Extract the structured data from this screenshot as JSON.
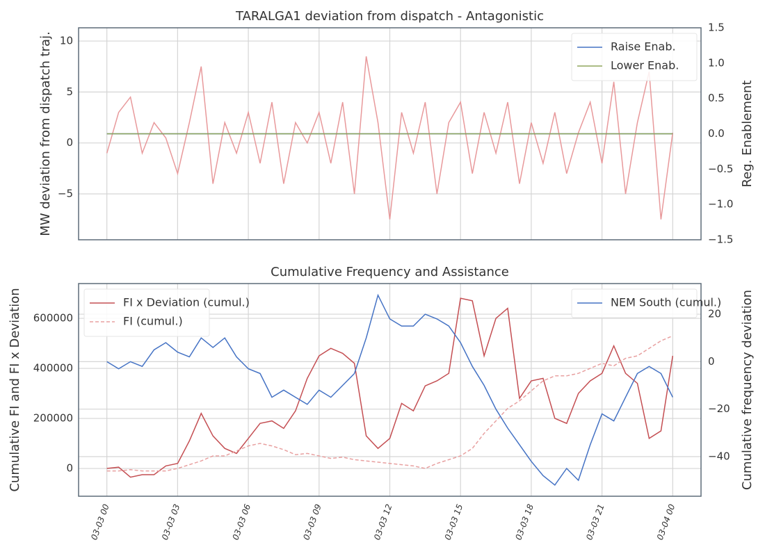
{
  "chart_data": [
    {
      "type": "line",
      "title": "TARALGA1 deviation from dispatch - Antagonistic",
      "ylabel": "MW deviation from dispatch traj.",
      "y2label": "Reg. Enablement",
      "x": [
        0,
        0.5,
        1,
        1.5,
        2,
        2.5,
        3,
        3.5,
        4,
        4.5,
        5,
        5.5,
        6,
        6.5,
        7,
        7.5,
        8,
        8.5,
        9,
        9.5,
        10,
        10.5,
        11,
        11.5,
        12,
        12.5,
        13,
        13.5,
        14,
        14.5,
        15,
        15.5,
        16,
        16.5,
        17,
        17.5,
        18,
        18.5,
        19,
        19.5,
        20,
        20.5,
        21,
        21.5,
        22,
        22.5,
        23,
        23.5,
        24
      ],
      "xlim": [
        -1.2,
        25.2
      ],
      "xticks": [
        0,
        3,
        6,
        9,
        12,
        15,
        18,
        21,
        24
      ],
      "ylim": [
        -9.5,
        11.3
      ],
      "yticks": [
        {
          "value": -5,
          "label": "−5"
        },
        0,
        5,
        10
      ],
      "y2lim": [
        -1.5,
        1.5
      ],
      "y2ticks": [
        {
          "value": -1.5,
          "label": "−1.5"
        },
        {
          "value": -1,
          "label": "−1.0"
        },
        {
          "value": -0.5,
          "label": "−0.5"
        },
        {
          "value": 0,
          "label": "0.0"
        },
        0.5,
        {
          "value": 1,
          "label": "1.0"
        },
        1.5
      ],
      "grid": true,
      "y2grid": false,
      "legend": {
        "y2": "upper right"
      },
      "series": [
        {
          "color": "#e8999b",
          "values": [
            -1,
            3,
            4.5,
            -1,
            2,
            0.5,
            -3,
            2,
            7.5,
            -4,
            2,
            -1,
            3,
            -2,
            4,
            -4,
            2,
            0,
            3,
            -2,
            4,
            -5,
            8.5,
            2,
            -7.5,
            3,
            -1,
            4,
            -5,
            2,
            4,
            -3,
            3,
            -1,
            4,
            -4,
            2,
            -2,
            3,
            -3,
            1,
            4,
            -2,
            6,
            -5,
            2,
            7,
            -7.5,
            1
          ]
        },
        {
          "name": "Raise Enab.",
          "color": "#4472c4",
          "axis": "y2",
          "values": [
            0,
            0,
            0,
            0,
            0,
            0,
            0,
            0,
            0,
            0,
            0,
            0,
            0,
            0,
            0,
            0,
            0,
            0,
            0,
            0,
            0,
            0,
            0,
            0,
            0,
            0,
            0,
            0,
            0,
            0,
            0,
            0,
            0,
            0,
            0,
            0,
            0,
            0,
            0,
            0,
            0,
            0,
            0,
            0,
            0,
            0,
            0,
            0,
            0
          ]
        },
        {
          "name": "Lower Enab.",
          "color": "#8fa65b",
          "axis": "y2",
          "values": [
            0,
            0,
            0,
            0,
            0,
            0,
            0,
            0,
            0,
            0,
            0,
            0,
            0,
            0,
            0,
            0,
            0,
            0,
            0,
            0,
            0,
            0,
            0,
            0,
            0,
            0,
            0,
            0,
            0,
            0,
            0,
            0,
            0,
            0,
            0,
            0,
            0,
            0,
            0,
            0,
            0,
            0,
            0,
            0,
            0,
            0,
            0,
            0,
            0
          ]
        }
      ]
    },
    {
      "type": "line",
      "title": "Cumulative Frequency and Assistance",
      "ylabel": "Cumulative FI and FI x Deviation",
      "y2label": "Cumulative frequency deviation",
      "x": [
        0,
        0.5,
        1,
        1.5,
        2,
        2.5,
        3,
        3.5,
        4,
        4.5,
        5,
        5.5,
        6,
        6.5,
        7,
        7.5,
        8,
        8.5,
        9,
        9.5,
        10,
        10.5,
        11,
        11.5,
        12,
        12.5,
        13,
        13.5,
        14,
        14.5,
        15,
        15.5,
        16,
        16.5,
        17,
        17.5,
        18,
        18.5,
        19,
        19.5,
        20,
        20.5,
        21,
        21.5,
        22,
        22.5,
        23,
        23.5,
        24
      ],
      "xlim": [
        -1.2,
        25.2
      ],
      "xticks": [
        {
          "value": 0,
          "label": "03-03 00"
        },
        {
          "value": 3,
          "label": "03-03 03"
        },
        {
          "value": 6,
          "label": "03-03 06"
        },
        {
          "value": 9,
          "label": "03-03 09"
        },
        {
          "value": 12,
          "label": "03-03 12"
        },
        {
          "value": 15,
          "label": "03-03 15"
        },
        {
          "value": 18,
          "label": "03-03 18"
        },
        {
          "value": 21,
          "label": "03-03 21"
        },
        {
          "value": 24,
          "label": "03-04 00"
        }
      ],
      "ylim": [
        -111000,
        739000
      ],
      "yticks": [
        0,
        200000,
        400000,
        600000
      ],
      "y2lim": [
        -56.7,
        32.9
      ],
      "y2ticks": [
        {
          "value": -40,
          "label": "−40"
        },
        {
          "value": -20,
          "label": "−20"
        },
        0,
        20
      ],
      "grid": true,
      "y2grid": true,
      "legend": {
        "y": "upper left",
        "y2": "upper right"
      },
      "series": [
        {
          "name": "FI x Deviation (cumul.)",
          "color": "#c44e52",
          "values": [
            0,
            5000,
            -35000,
            -25000,
            -25000,
            10000,
            20000,
            110000,
            220000,
            130000,
            80000,
            60000,
            120000,
            180000,
            190000,
            160000,
            230000,
            360000,
            450000,
            480000,
            460000,
            420000,
            130000,
            80000,
            120000,
            260000,
            230000,
            330000,
            350000,
            380000,
            680000,
            670000,
            450000,
            600000,
            640000,
            280000,
            350000,
            360000,
            200000,
            180000,
            300000,
            350000,
            380000,
            490000,
            380000,
            340000,
            120000,
            150000,
            450000
          ]
        },
        {
          "name": "FI (cumul.)",
          "color": "#e8a0a0",
          "dash": true,
          "values": [
            -10000,
            -10000,
            -5000,
            -10000,
            -10000,
            -10000,
            0,
            15000,
            30000,
            50000,
            50000,
            70000,
            90000,
            100000,
            90000,
            75000,
            55000,
            60000,
            50000,
            40000,
            45000,
            35000,
            30000,
            25000,
            20000,
            15000,
            10000,
            0,
            20000,
            35000,
            50000,
            80000,
            140000,
            190000,
            240000,
            270000,
            310000,
            350000,
            370000,
            370000,
            380000,
            400000,
            420000,
            410000,
            440000,
            450000,
            480000,
            510000,
            530000
          ]
        },
        {
          "name": "NEM South (cumul.)",
          "color": "#4472c4",
          "axis": "y2",
          "values": [
            0,
            -3,
            0,
            -2,
            5,
            8,
            4,
            2,
            10,
            6,
            10,
            2,
            -3,
            -5,
            -15,
            -12,
            -15,
            -18,
            -12,
            -15,
            -10,
            -5,
            10,
            28,
            18,
            15,
            15,
            20,
            18,
            15,
            8,
            -2,
            -10,
            -20,
            -28,
            -35,
            -42,
            -48,
            -52,
            -45,
            -50,
            -35,
            -22,
            -25,
            -15,
            -5,
            -2,
            -5,
            -15
          ]
        }
      ]
    }
  ]
}
